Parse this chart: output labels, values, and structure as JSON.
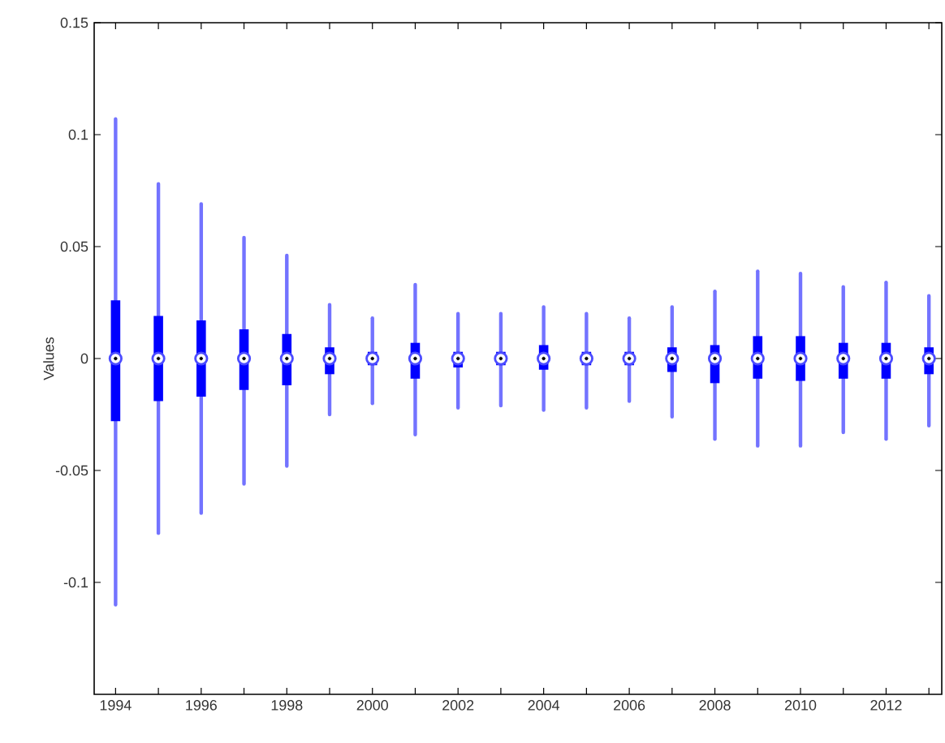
{
  "chart_data": {
    "type": "box",
    "ylabel": "Values",
    "categories": [
      "1994",
      null,
      "1996",
      null,
      "1998",
      null,
      "2000",
      null,
      "2002",
      null,
      "2004",
      null,
      "2006",
      null,
      "2008",
      null,
      "2010",
      null,
      "2012",
      null
    ],
    "color": "#0000ff",
    "boxes": [
      {
        "low": -0.11,
        "q1": -0.028,
        "median": 0,
        "q3": 0.026,
        "high": 0.107
      },
      {
        "low": -0.078,
        "q1": -0.019,
        "median": 0,
        "q3": 0.019,
        "high": 0.078
      },
      {
        "low": -0.069,
        "q1": -0.017,
        "median": 0,
        "q3": 0.017,
        "high": 0.069
      },
      {
        "low": -0.056,
        "q1": -0.014,
        "median": 0,
        "q3": 0.013,
        "high": 0.054
      },
      {
        "low": -0.048,
        "q1": -0.012,
        "median": 0,
        "q3": 0.011,
        "high": 0.046
      },
      {
        "low": -0.025,
        "q1": -0.007,
        "median": 0,
        "q3": 0.005,
        "high": 0.024
      },
      {
        "low": -0.02,
        "q1": -0.003,
        "median": 0,
        "q3": 0.003,
        "high": 0.018
      },
      {
        "low": -0.034,
        "q1": -0.009,
        "median": 0,
        "q3": 0.007,
        "high": 0.033
      },
      {
        "low": -0.022,
        "q1": -0.004,
        "median": 0,
        "q3": 0.003,
        "high": 0.02
      },
      {
        "low": -0.021,
        "q1": -0.003,
        "median": 0,
        "q3": 0.003,
        "high": 0.02
      },
      {
        "low": -0.023,
        "q1": -0.005,
        "median": 0,
        "q3": 0.006,
        "high": 0.023
      },
      {
        "low": -0.022,
        "q1": -0.003,
        "median": 0,
        "q3": 0.003,
        "high": 0.02
      },
      {
        "low": -0.019,
        "q1": -0.003,
        "median": 0,
        "q3": 0.003,
        "high": 0.018
      },
      {
        "low": -0.026,
        "q1": -0.006,
        "median": 0,
        "q3": 0.005,
        "high": 0.023
      },
      {
        "low": -0.036,
        "q1": -0.011,
        "median": 0,
        "q3": 0.006,
        "high": 0.03
      },
      {
        "low": -0.039,
        "q1": -0.009,
        "median": 0,
        "q3": 0.01,
        "high": 0.039
      },
      {
        "low": -0.039,
        "q1": -0.01,
        "median": 0,
        "q3": 0.01,
        "high": 0.038
      },
      {
        "low": -0.033,
        "q1": -0.009,
        "median": 0,
        "q3": 0.007,
        "high": 0.032
      },
      {
        "low": -0.036,
        "q1": -0.009,
        "median": 0,
        "q3": 0.007,
        "high": 0.034
      },
      {
        "low": -0.03,
        "q1": -0.007,
        "median": 0,
        "q3": 0.005,
        "high": 0.028
      }
    ],
    "ylim": [
      -0.15,
      0.15
    ],
    "yticks": [
      -0.1,
      -0.05,
      0,
      0.05,
      0.1,
      0.15
    ],
    "grid": false
  }
}
